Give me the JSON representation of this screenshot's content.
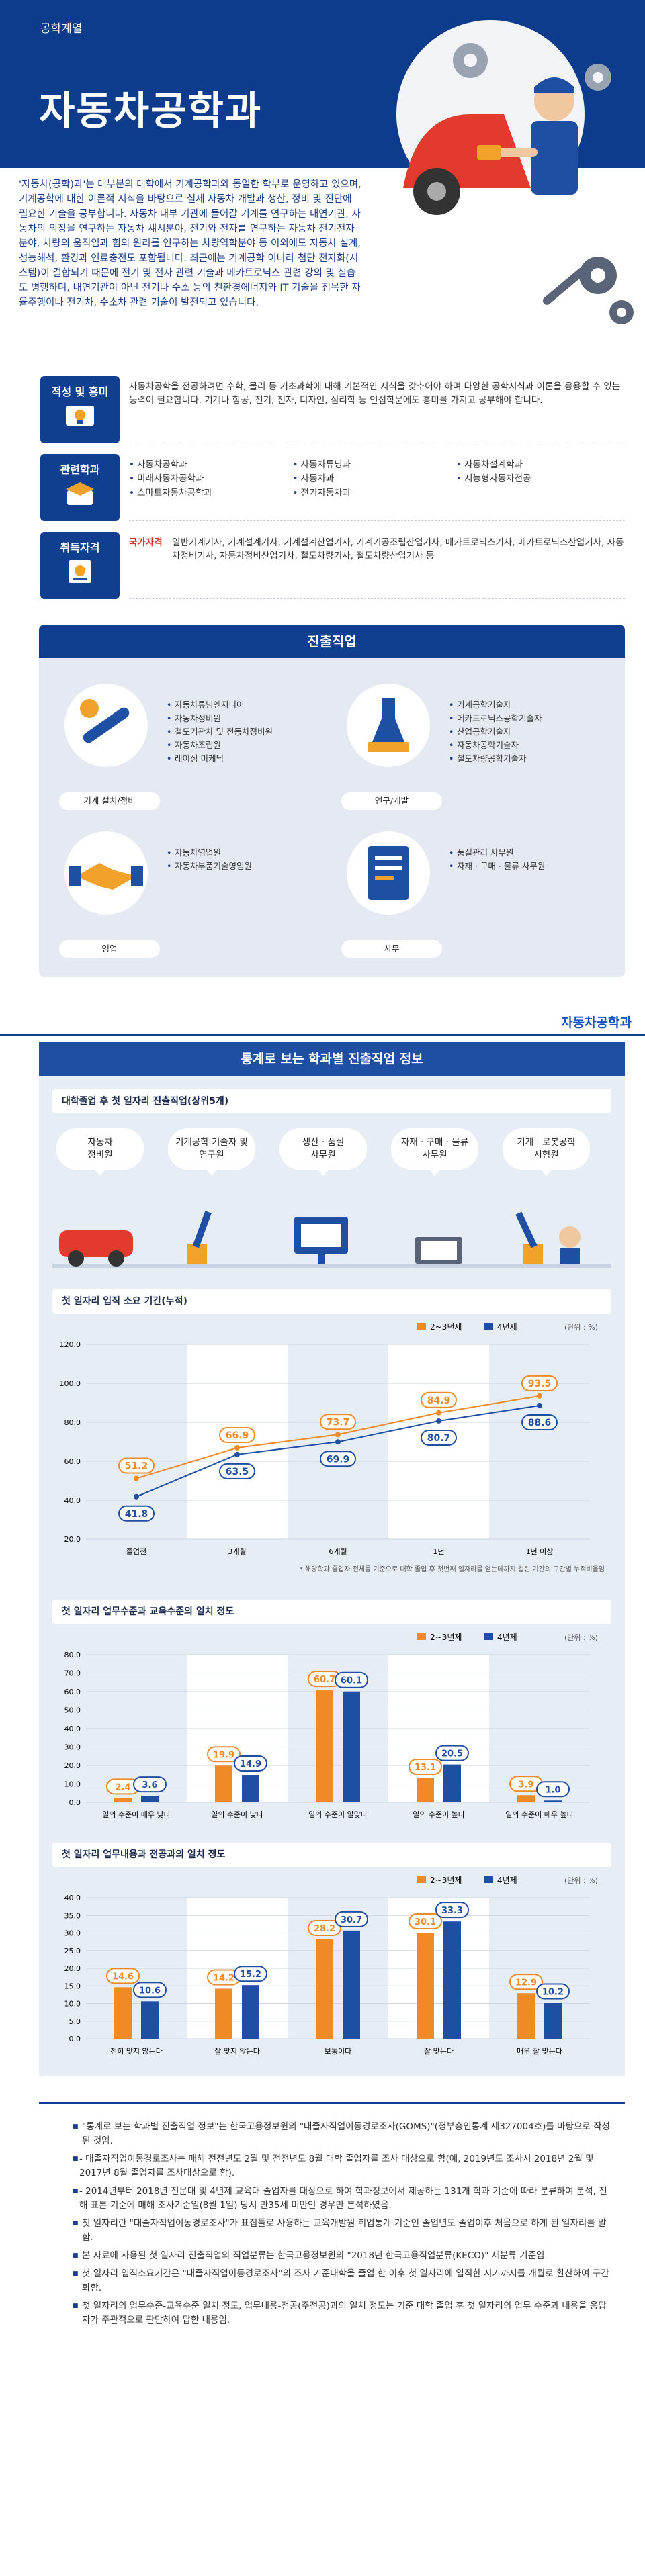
{
  "header": {
    "category": "공학계열",
    "title": "자동차공학과"
  },
  "intro": "'자동차(공학)과'는 대부분의 대학에서 기계공학과와 동일한 학부로 운영하고 있으며, 기계공학에 대한 이론적 지식을 바탕으로 실제 자동차 개발과 생산, 정비 및 진단에 필요한 기술을 공부합니다. 자동차 내부 기관에 들어갈 기계를 연구하는 내연기관, 자동차의 외장을 연구하는 자동차 섀시분야, 전기와 전자를 연구하는 자동차 전기전자분야, 차량의 움직임과 힘의 원리를 연구하는 차량역학분야 등 이외에도 자동차 설계, 성능해석, 환경과 연료충전도 포함됩니다. 최근에는 기계공학 이나라 첨단 전자화(시스템)이 결합되기 때문에 전기 및 전자 관련 기술과 메카트로닉스 관련 강의 및 실습도 병행하며, 내연기관이 아닌 전기나 수소 등의 친환경에너지와 IT 기술을 접목한 자율주행이나 전기차, 수소차 관련 기술이 발전되고 있습니다.",
  "aptitude": {
    "label": "적성 및 흥미",
    "text": "자동차공학을 전공하려면 수학, 물리 등 기초과학에 대해 기본적인 지식을 갖추어야 하며 다양한 공학지식과 이론을 응용할 수 있는 능력이 필요합니다. 기계나 항공, 전기, 전자, 디자인, 심리학 등 인접학문에도 흥미를 가지고 공부해야 합니다."
  },
  "related": {
    "label": "관련학과",
    "columns": [
      [
        "자동차공학과",
        "미래자동차공학과",
        "스마트자동차공학과"
      ],
      [
        "자동차튜닝과",
        "자동차과",
        "전기자동차과"
      ],
      [
        "자동차설계학과",
        "지능형자동차전공"
      ]
    ]
  },
  "license": {
    "label": "취득자격",
    "key": "국가자격",
    "value": "일반기계기사, 기계설계기사, 기계설계산업기사, 기계기공조립산업기사, 메카트로닉스기사, 메카트로닉스산업기사, 자동차정비기사, 자동차정비산업기사, 철도차량기사, 철도차량산업기사 등"
  },
  "jobs": {
    "title": "진출직업",
    "cards": [
      {
        "tag": "기계 설치/정비",
        "items": [
          "자동차튜닝엔지니어",
          "자동차정비원",
          "철도기관차 및 전동차정비원",
          "자동차조립원",
          "레이싱 미케닉"
        ]
      },
      {
        "tag": "연구/개발",
        "items": [
          "기계공학기술자",
          "메카트로닉스공학기술자",
          "산업공학기술자",
          "자동차공학기술자",
          "철도차량공학기술자"
        ]
      },
      {
        "tag": "영업",
        "items": [
          "자동차영업원",
          "자동차부품기술영업원"
        ]
      },
      {
        "tag": "사무",
        "items": [
          "품질관리 사무원",
          "자재 · 구매 · 물류 사무원"
        ]
      }
    ]
  },
  "stats": {
    "brand": "자동차공학과",
    "title": "통계로 보는 학과별 진출직업 정보",
    "top5": {
      "title": "대학졸업 후 첫 일자리 진출직업(상위5개)",
      "items": [
        "자동차\n정비원",
        "기계공학 기술자 및\n연구원",
        "생산 · 품질\n사무원",
        "자재 · 구매 · 물류\n사무원",
        "기계 · 로봇공학\n시험원"
      ]
    },
    "legend_a": "2~3년제",
    "legend_b": "4년제",
    "unit": "(단위 : %)",
    "chart1_title": "첫 일자리 입직 소요 기간(누적)",
    "chart1_note": "* 해당학과 졸업자 전체를 기준으로 대학 졸업 후 첫번째 일자리를 얻는데까지 걸린 기간의 구간별 누적비율임",
    "chart2_title": "첫 일자리 업무수준과 교육수준의 일치 정도",
    "chart3_title": "첫 일자리 업무내용과 전공과의 일치 정도"
  },
  "chart_data": [
    {
      "type": "line",
      "title": "첫 일자리 입직 소요 기간(누적)",
      "categories": [
        "졸업전",
        "3개월",
        "6개월",
        "1년",
        "1년 이상"
      ],
      "ylim": [
        20,
        120
      ],
      "yticks": [
        "120.0",
        "100.0",
        "80.0",
        "60.0",
        "40.0",
        "20.0"
      ],
      "series": [
        {
          "name": "2~3년제",
          "values": [
            51.2,
            66.9,
            73.7,
            84.9,
            93.5
          ],
          "color": "#f08a24"
        },
        {
          "name": "4년제",
          "values": [
            41.8,
            63.5,
            69.9,
            80.7,
            88.6
          ],
          "color": "#1f4fa3"
        }
      ]
    },
    {
      "type": "bar",
      "title": "첫 일자리 업무수준과 교육수준의 일치 정도",
      "categories": [
        "일의 수준이 매우 낮다",
        "일의 수준이 낮다",
        "일의 수준이 알맞다",
        "일의 수준이 높다",
        "일의 수준이 매우 높다"
      ],
      "ylim": [
        0,
        80
      ],
      "yticks": [
        "80.0",
        "70.0",
        "60.0",
        "50.0",
        "40.0",
        "30.0",
        "20.0",
        "10.0",
        "0.0"
      ],
      "series": [
        {
          "name": "2~3년제",
          "values": [
            2.4,
            19.9,
            60.7,
            13.1,
            3.9
          ],
          "color": "#f08a24"
        },
        {
          "name": "4년제",
          "values": [
            3.6,
            14.9,
            60.1,
            20.5,
            1.0
          ],
          "color": "#1f4fa3"
        }
      ]
    },
    {
      "type": "bar",
      "title": "첫 일자리 업무내용과 전공과의 일치 정도",
      "categories": [
        "전혀 맞지 않는다",
        "잘 맞지 않는다",
        "보통이다",
        "잘 맞는다",
        "매우 잘 맞는다"
      ],
      "ylim": [
        0,
        40
      ],
      "yticks": [
        "40.0",
        "35.0",
        "30.0",
        "25.0",
        "20.0",
        "15.0",
        "10.0",
        "5.0",
        "0.0"
      ],
      "series": [
        {
          "name": "2~3년제",
          "values": [
            14.6,
            14.2,
            28.2,
            30.1,
            12.9
          ],
          "color": "#f08a24"
        },
        {
          "name": "4년제",
          "values": [
            10.6,
            15.2,
            30.7,
            33.3,
            10.2
          ],
          "color": "#1f4fa3"
        }
      ]
    }
  ],
  "notes": [
    "\"통계로 보는 학과별 진출직업 정보\"는 한국고용정보원의 \"대졸자직업이동경로조사(GOMS)\"(정부승인통계 제327004호)를 바탕으로 작성된 것임.",
    "- 대졸자직업이동경로조사는 매해 전전년도 2월 및 전전년도 8월 대학 졸업자를 조사 대상으로 함(예, 2019년도 조사시 2018년 2월 및 2017년 8월 졸업자를 조사대상으로 함).",
    "- 2014년부터 2018년 전문대 및 4년제 교육대 졸업자를 대상으로 하여 학과정보에서 제공하는 131개 학과 기준에 따라 분류하여 분석, 전해 표본 기준에 매해 조사기준일(8월 1일) 당시 만35세 미만인 경우만 분석하였음.",
    "첫 일자리란 \"대졸자직업이동경로조사\"가 표집틀로 사용하는 교육개발원 취업통계 기준인 졸업년도 졸업이후 처음으로 하게 된 일자리를 말함.",
    "본 자료에 사용된 첫 일자리 진출직업의 직업분류는 한국고용정보원의 \"2018년 한국고용직업분류(KECO)\" 세분류 기준임.",
    "첫 일자리 입직소요기간은 \"대졸자직업이동경로조사\"의 조사 기준대학을 졸업 한 이후 첫 일자리에 입직한 시기까지를 개월로 환산하여 구간화함.",
    "첫 일자리의 업무수준-교육수준 일치 정도, 업무내용-전공(주전공)과의 일치 정도는 기준 대학 졸업 후 첫 일자리의 업무 수준과 내용을 응답자가 주관적으로 판단하여 답한 내용임."
  ]
}
